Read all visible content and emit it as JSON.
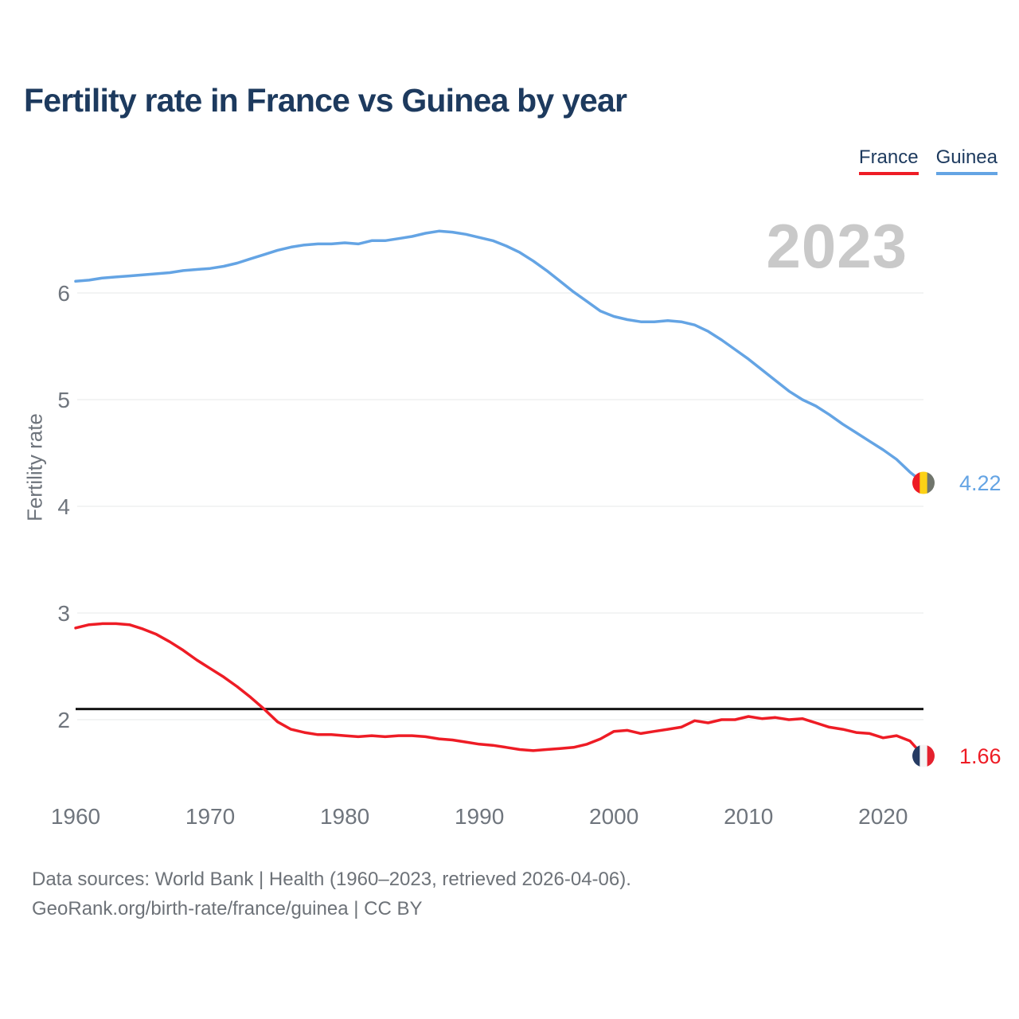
{
  "title": "Fertility rate in France vs Guinea by year",
  "watermark": "2023",
  "legend": {
    "items": [
      {
        "label": "France",
        "color": "#ee1c25"
      },
      {
        "label": "Guinea",
        "color": "#64a4e4"
      }
    ]
  },
  "footer": {
    "line1": "Data sources: World Bank | Health (1960–2023, retrieved 2026-04-06).",
    "line2": "GeoRank.org/birth-rate/france/guinea | CC BY"
  },
  "chart_data": {
    "type": "line",
    "title": "Fertility rate in France vs Guinea by year",
    "xlabel": "",
    "ylabel": "Fertility rate",
    "ylim": [
      1.5,
      6.8
    ],
    "xlim": [
      1960,
      2023
    ],
    "yticks": [
      2,
      3,
      4,
      5,
      6
    ],
    "xticks": [
      1960,
      1970,
      1980,
      1990,
      2000,
      2010,
      2020
    ],
    "grid": "horizontal-only",
    "gridline_color": "#e7e8ea",
    "tick_label_color": "#6f757d",
    "legend_position": "top-right",
    "current_year_badge": "2023",
    "reference_line": {
      "value": 2.1,
      "color": "#141414",
      "meaning": "replacement-level fertility"
    },
    "x": [
      1960,
      1961,
      1962,
      1963,
      1964,
      1965,
      1966,
      1967,
      1968,
      1969,
      1970,
      1971,
      1972,
      1973,
      1974,
      1975,
      1976,
      1977,
      1978,
      1979,
      1980,
      1981,
      1982,
      1983,
      1984,
      1985,
      1986,
      1987,
      1988,
      1989,
      1990,
      1991,
      1992,
      1993,
      1994,
      1995,
      1996,
      1997,
      1998,
      1999,
      2000,
      2001,
      2002,
      2003,
      2004,
      2005,
      2006,
      2007,
      2008,
      2009,
      2010,
      2011,
      2012,
      2013,
      2014,
      2015,
      2016,
      2017,
      2018,
      2019,
      2020,
      2021,
      2022,
      2023
    ],
    "series": [
      {
        "name": "France",
        "color": "#ee1c25",
        "end_label": "1.66",
        "end_value": 1.66,
        "flag_stripes": [
          "#263b63",
          "#f4f4f4",
          "#e4212e"
        ],
        "values": [
          2.86,
          2.89,
          2.9,
          2.9,
          2.89,
          2.85,
          2.8,
          2.73,
          2.65,
          2.56,
          2.48,
          2.4,
          2.31,
          2.21,
          2.1,
          1.98,
          1.91,
          1.88,
          1.86,
          1.86,
          1.85,
          1.84,
          1.85,
          1.84,
          1.85,
          1.85,
          1.84,
          1.82,
          1.81,
          1.79,
          1.77,
          1.76,
          1.74,
          1.72,
          1.71,
          1.72,
          1.73,
          1.74,
          1.77,
          1.82,
          1.89,
          1.9,
          1.87,
          1.89,
          1.91,
          1.93,
          1.99,
          1.97,
          2.0,
          2.0,
          2.03,
          2.01,
          2.02,
          2.0,
          2.01,
          1.97,
          1.93,
          1.91,
          1.88,
          1.87,
          1.83,
          1.85,
          1.8,
          1.66
        ]
      },
      {
        "name": "Guinea",
        "color": "#64a4e4",
        "end_label": "4.22",
        "end_value": 4.22,
        "flag_stripes": [
          "#ee1b24",
          "#fcd116",
          "#70756c"
        ],
        "values": [
          6.11,
          6.12,
          6.14,
          6.15,
          6.16,
          6.17,
          6.18,
          6.19,
          6.21,
          6.22,
          6.23,
          6.25,
          6.28,
          6.32,
          6.36,
          6.4,
          6.43,
          6.45,
          6.46,
          6.46,
          6.47,
          6.46,
          6.49,
          6.49,
          6.51,
          6.53,
          6.56,
          6.58,
          6.57,
          6.55,
          6.52,
          6.49,
          6.44,
          6.38,
          6.3,
          6.21,
          6.11,
          6.01,
          5.92,
          5.83,
          5.78,
          5.75,
          5.73,
          5.73,
          5.74,
          5.73,
          5.7,
          5.64,
          5.56,
          5.47,
          5.38,
          5.28,
          5.18,
          5.08,
          5.0,
          4.94,
          4.86,
          4.77,
          4.69,
          4.61,
          4.53,
          4.44,
          4.32,
          4.22
        ]
      }
    ]
  }
}
